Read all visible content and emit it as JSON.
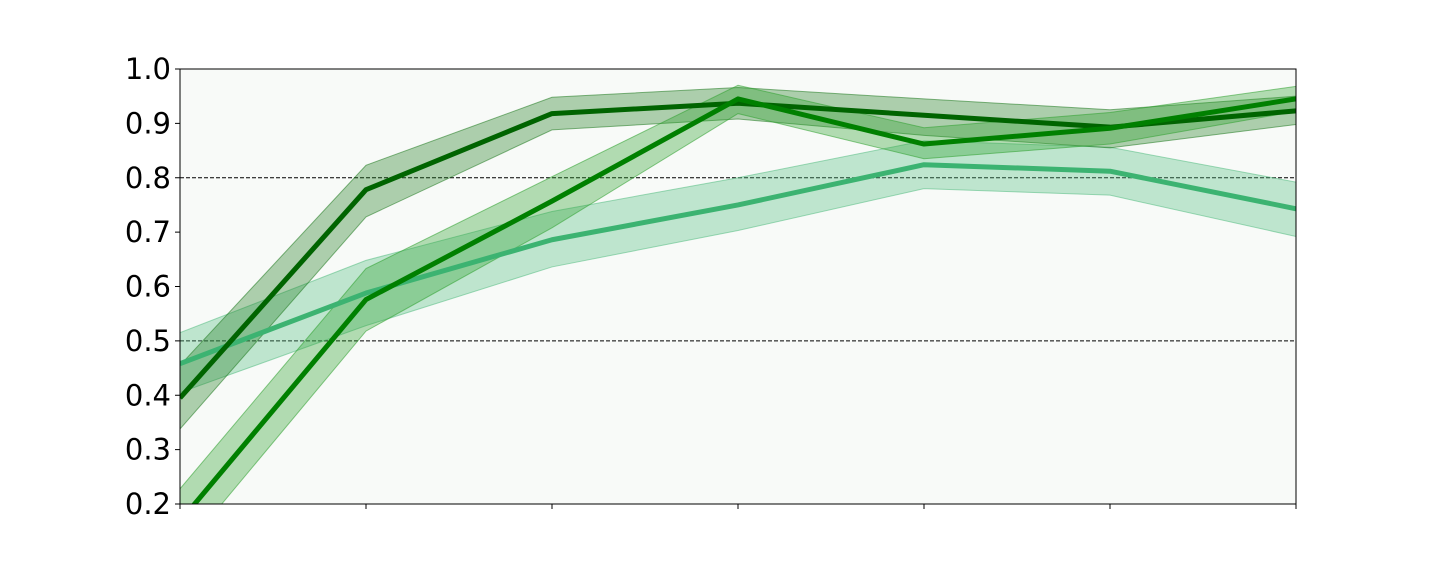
{
  "chart_data": {
    "type": "line",
    "title": "",
    "xlabel": "",
    "ylabel": "",
    "x": [
      0,
      1,
      2,
      3,
      4,
      5,
      6
    ],
    "xlim": [
      0,
      6
    ],
    "ylim": [
      0.2,
      1.0
    ],
    "yticks": [
      0.2,
      0.3,
      0.4,
      0.5,
      0.6,
      0.7,
      0.8,
      0.9,
      1.0
    ],
    "ytick_labels": [
      "0.2",
      "0.3",
      "0.4",
      "0.5",
      "0.6",
      "0.7",
      "0.8",
      "0.9",
      "1.0"
    ],
    "reference_lines": [
      0.5,
      0.8
    ],
    "grid": false,
    "background_color": "#f8faf8",
    "series": [
      {
        "values": [
          0.458,
          0.588,
          0.686,
          0.75,
          0.824,
          0.812,
          0.743
        ],
        "lower": [
          0.405,
          0.528,
          0.636,
          0.703,
          0.78,
          0.768,
          0.692
        ],
        "upper": [
          0.515,
          0.648,
          0.738,
          0.8,
          0.868,
          0.856,
          0.792
        ],
        "color": "#3cb371",
        "band_color": "#52bc80"
      },
      {
        "values": [
          0.395,
          0.778,
          0.918,
          0.937,
          0.915,
          0.893,
          0.923
        ],
        "lower": [
          0.338,
          0.728,
          0.888,
          0.908,
          0.878,
          0.855,
          0.898
        ],
        "upper": [
          0.455,
          0.823,
          0.948,
          0.966,
          0.945,
          0.925,
          0.95
        ],
        "color": "#006400",
        "band_color": "#1f7a1f"
      },
      {
        "values": [
          0.168,
          0.576,
          0.757,
          0.945,
          0.862,
          0.891,
          0.945
        ],
        "lower": [
          0.108,
          0.518,
          0.708,
          0.918,
          0.835,
          0.862,
          0.922
        ],
        "upper": [
          0.228,
          0.633,
          0.802,
          0.97,
          0.892,
          0.92,
          0.968
        ],
        "color": "#008000",
        "band_color": "#2ea02e"
      }
    ]
  }
}
